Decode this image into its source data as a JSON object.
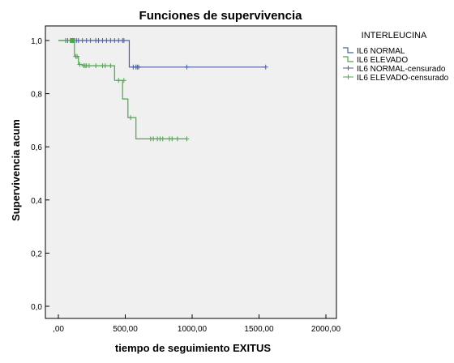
{
  "chart_data": {
    "type": "line",
    "title": "Funciones de supervivencia",
    "xlabel": "tiempo de seguimiento EXITUS",
    "ylabel": "Supervivencia acum",
    "xlim": [
      0,
      2000
    ],
    "ylim": [
      0,
      1
    ],
    "x_ticks": [
      ",00",
      "500,00",
      "1000,00",
      "1500,00",
      "2000,00"
    ],
    "y_ticks": [
      "0,0",
      "0,2",
      "0,4",
      "0,6",
      "0,8",
      "1,0"
    ],
    "grid": false,
    "legend_position": "top-right",
    "legend_title": "INTERLEUCINA",
    "legend_labels": [
      "IL6 NORMAL",
      "IL6 ELEVADO",
      "IL6 NORMAL-censurado",
      "IL6 ELEVADO-censurado"
    ],
    "series": [
      {
        "name": "IL6 NORMAL",
        "color": "#4a5fa0",
        "step_x": [
          0,
          530,
          1550
        ],
        "step_y": [
          1.0,
          0.9,
          0.9
        ],
        "censored_x": [
          55,
          70,
          90,
          100,
          110,
          120,
          135,
          150,
          180,
          210,
          240,
          280,
          300,
          330,
          360,
          390,
          420,
          450,
          480,
          490,
          560,
          580,
          590,
          600,
          960,
          1550
        ],
        "censored_y": [
          1.0,
          1.0,
          1.0,
          1.0,
          1.0,
          1.0,
          1.0,
          1.0,
          1.0,
          1.0,
          1.0,
          1.0,
          1.0,
          1.0,
          1.0,
          1.0,
          1.0,
          1.0,
          1.0,
          1.0,
          0.9,
          0.9,
          0.9,
          0.9,
          0.9,
          0.9
        ]
      },
      {
        "name": "IL6 ELEVADO",
        "color": "#4aa84a",
        "step_x": [
          0,
          120,
          150,
          180,
          420,
          480,
          520,
          580,
          960
        ],
        "step_y": [
          1.0,
          0.94,
          0.91,
          0.905,
          0.85,
          0.78,
          0.71,
          0.63,
          0.63
        ],
        "censored_x": [
          90,
          95,
          100,
          105,
          110,
          115,
          130,
          140,
          160,
          190,
          200,
          210,
          230,
          280,
          330,
          350,
          390,
          450,
          490,
          540,
          690,
          710,
          740,
          760,
          780,
          830,
          850,
          890,
          960
        ],
        "censored_y": [
          1.0,
          1.0,
          1.0,
          1.0,
          1.0,
          1.0,
          0.94,
          0.94,
          0.91,
          0.905,
          0.905,
          0.905,
          0.905,
          0.905,
          0.905,
          0.905,
          0.905,
          0.85,
          0.85,
          0.71,
          0.63,
          0.63,
          0.63,
          0.63,
          0.63,
          0.63,
          0.63,
          0.63,
          0.63
        ]
      }
    ]
  }
}
